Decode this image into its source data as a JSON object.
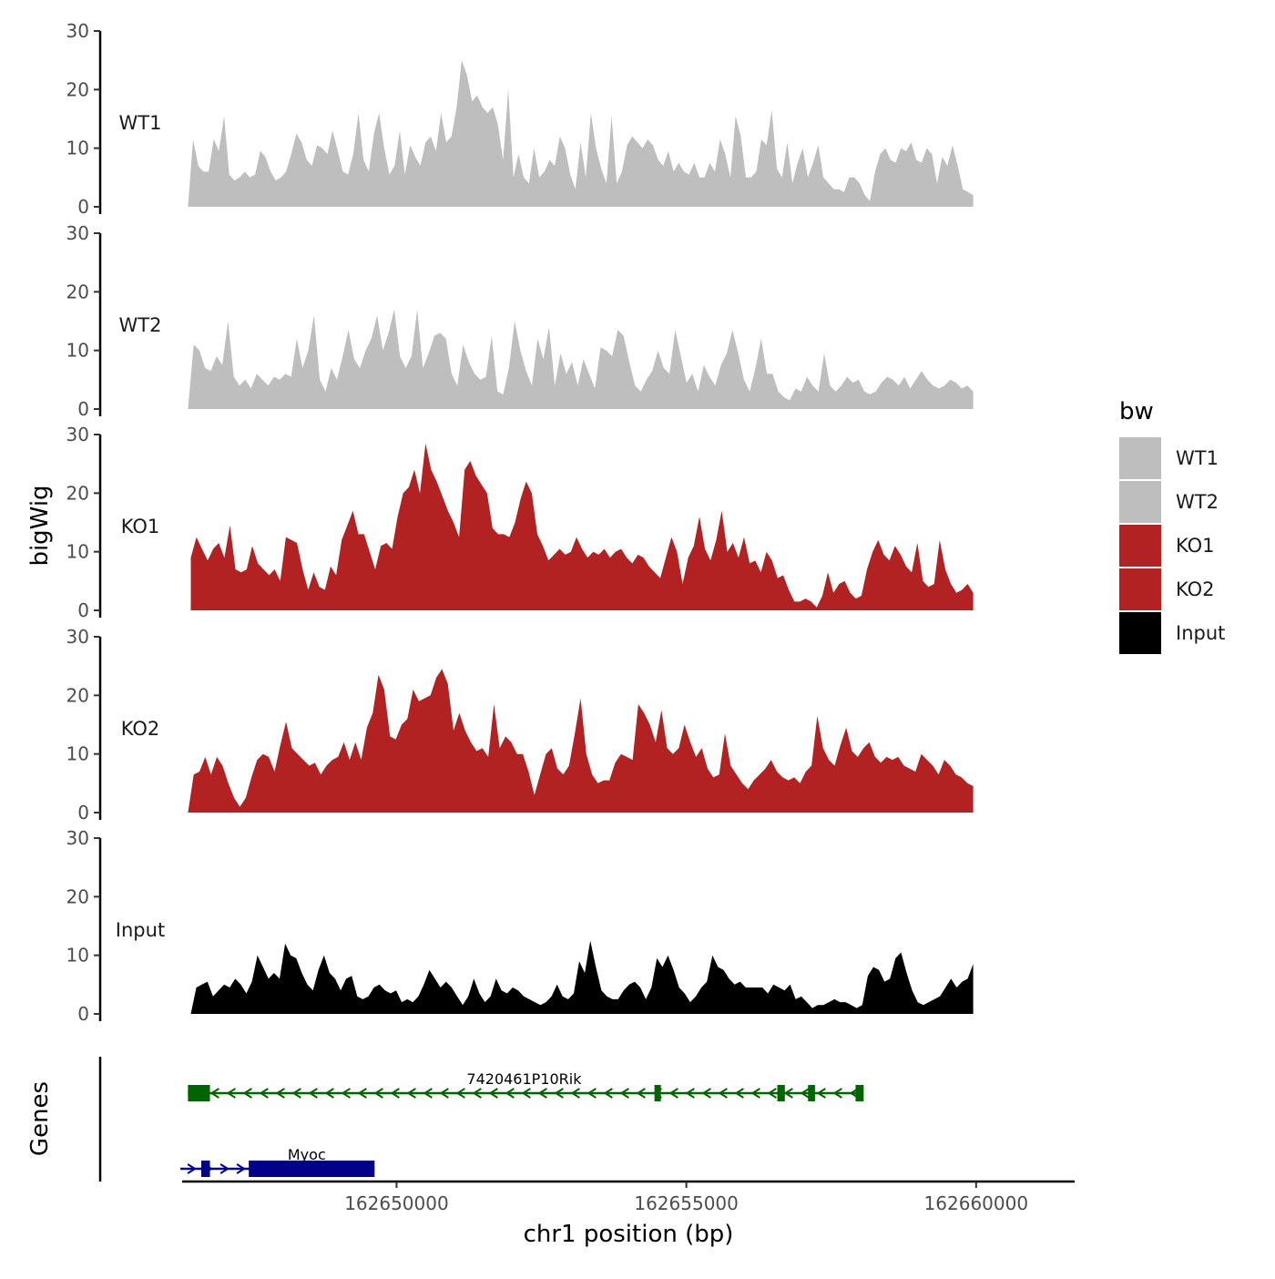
{
  "chart_data": {
    "type": "area",
    "title": "",
    "ylabel": "bigWig",
    "xlabel": "chr1 position (bp)",
    "ylim": [
      0,
      30
    ],
    "yticks": [
      0,
      10,
      20,
      30
    ],
    "xlim": [
      162646300,
      162661700
    ],
    "xticks": [
      162650000,
      162655000,
      162660000
    ],
    "xtick_labels": [
      "162650000",
      "162655000",
      "162660000"
    ],
    "legend": {
      "title": "bw",
      "position": "right",
      "entries": [
        {
          "label": "WT1",
          "color": "#bebebe"
        },
        {
          "label": "WT2",
          "color": "#bebebe"
        },
        {
          "label": "KO1",
          "color": "#b22222"
        },
        {
          "label": "KO2",
          "color": "#b22222"
        },
        {
          "label": "Input",
          "color": "#000000"
        }
      ]
    },
    "tracks": [
      {
        "name": "WT1",
        "color": "#bebebe",
        "x_start": 162646400,
        "x_end": 162659950,
        "values": [
          0,
          11.5,
          7,
          6,
          6,
          11.5,
          9.5,
          15.5,
          5.5,
          4.5,
          5,
          6,
          5,
          5.5,
          9.5,
          8.5,
          6,
          4.5,
          5,
          6,
          9,
          12.5,
          11,
          8,
          7,
          10.5,
          10,
          9,
          13,
          9.5,
          6,
          5.5,
          9,
          16,
          8,
          6,
          12.5,
          16,
          10,
          5.5,
          7,
          13,
          5.5,
          10.5,
          8.5,
          7,
          11,
          12,
          9.5,
          16,
          11,
          12,
          17,
          25,
          22.5,
          18,
          19,
          17,
          16,
          17,
          14,
          8,
          20,
          5,
          9,
          5,
          4,
          10,
          5,
          6,
          8,
          7,
          12,
          10,
          5.5,
          3,
          11,
          5,
          16,
          10,
          6.5,
          4,
          15.5,
          4,
          6,
          10.5,
          12,
          11,
          10,
          11.5,
          10.5,
          8,
          7,
          9.5,
          6,
          7.5,
          6,
          5.5,
          7.5,
          5,
          5,
          7.5,
          6,
          11.5,
          9,
          5,
          15.5,
          12,
          5,
          5,
          6,
          11.5,
          10.5,
          16.5,
          6.5,
          5,
          11,
          4,
          7.5,
          10,
          5,
          7.5,
          10.5,
          5,
          4,
          3,
          3,
          2.5,
          5,
          5,
          4,
          2,
          1,
          6,
          9,
          10,
          8,
          7.5,
          10,
          9.5,
          11,
          8,
          7.5,
          10,
          9,
          4,
          8.5,
          7,
          10.5,
          7,
          3,
          2.5,
          2
        ]
      },
      {
        "name": "WT2",
        "color": "#bebebe",
        "x_start": 162646400,
        "x_end": 162659950,
        "values": [
          0,
          11,
          10,
          7,
          6.5,
          9,
          7.5,
          15,
          5.5,
          4,
          5,
          3.5,
          6,
          5,
          4,
          5.5,
          5,
          6,
          5.5,
          12,
          7,
          10,
          16,
          5,
          3,
          7,
          5,
          9,
          13.5,
          8.5,
          7,
          10,
          12,
          16,
          10,
          13,
          17,
          9,
          7,
          9,
          17,
          7,
          9.5,
          12.5,
          13,
          12,
          6,
          4,
          11,
          8,
          6,
          5,
          5.5,
          12.5,
          3,
          2.5,
          7,
          15,
          10,
          6.5,
          4,
          12,
          8.5,
          14,
          4,
          9.5,
          6,
          8,
          4,
          8.5,
          6,
          3.5,
          10.5,
          10,
          9,
          13.5,
          12.5,
          8,
          4,
          3,
          5,
          6.5,
          10,
          7,
          6,
          13.5,
          9,
          4.5,
          6,
          3,
          7.5,
          5.5,
          4,
          7.5,
          9.5,
          13.5,
          9.5,
          5,
          3,
          7,
          12,
          6,
          6,
          3,
          2,
          1.5,
          3.5,
          3,
          5.5,
          4,
          3,
          9.5,
          4,
          3,
          4,
          5.5,
          4.5,
          5,
          3,
          2.5,
          3,
          4.5,
          5.5,
          5,
          4,
          5.5,
          3.5,
          5,
          6.5,
          5,
          4,
          3.5,
          4,
          5,
          4.5,
          3.5,
          4,
          3
        ]
      },
      {
        "name": "KO1",
        "color": "#b22222",
        "x_start": 162646450,
        "x_end": 162659950,
        "values": [
          9,
          12.5,
          10.5,
          8.5,
          10.5,
          11.5,
          9,
          14.5,
          7,
          6.5,
          7,
          11,
          8,
          7,
          6,
          7,
          5,
          12.5,
          12,
          11.5,
          7,
          3.5,
          6.5,
          4,
          3.5,
          7.5,
          6,
          12,
          14.5,
          17,
          13,
          13,
          10,
          7,
          11,
          11.5,
          10.5,
          16,
          20,
          21,
          24,
          20,
          28.5,
          24,
          22,
          19.5,
          17,
          15,
          12.5,
          24,
          25.5,
          23,
          21.5,
          20,
          14,
          13,
          13,
          12.5,
          15,
          19,
          22,
          20,
          13,
          11,
          8.5,
          9.5,
          10.5,
          9.5,
          10,
          12.5,
          10.5,
          9,
          10,
          9.5,
          10.5,
          9,
          10,
          10.5,
          9,
          8,
          9.5,
          9,
          7.5,
          6.5,
          5.5,
          9,
          12.5,
          10,
          4.5,
          9,
          11,
          16,
          10.5,
          8.5,
          12,
          17,
          10,
          11.5,
          9,
          12.5,
          8,
          8.5,
          6.5,
          10,
          8.5,
          5.5,
          6,
          3.5,
          1.5,
          1.5,
          2,
          1.5,
          0.5,
          2.5,
          6.5,
          3,
          4.5,
          5,
          3,
          2,
          2.5,
          7,
          10,
          12,
          9.5,
          8.5,
          11,
          9.5,
          7.5,
          6.5,
          11.5,
          5,
          4,
          4.5,
          12,
          7,
          4.5,
          3,
          3.5,
          4.5,
          3
        ]
      },
      {
        "name": "KO2",
        "color": "#b22222",
        "x_start": 162646400,
        "x_end": 162659950,
        "values": [
          0,
          6.5,
          7,
          9.5,
          6.5,
          9.5,
          8,
          5,
          2.5,
          1,
          2.5,
          6,
          9,
          10,
          9.5,
          7,
          11.5,
          15.5,
          11,
          10,
          9,
          8,
          8.5,
          6.5,
          8,
          9,
          9.5,
          12,
          9,
          12,
          9,
          14.5,
          17,
          23.5,
          21,
          13,
          12.5,
          15,
          16,
          21,
          19,
          19.5,
          20,
          23,
          24.5,
          22,
          14,
          17,
          14,
          12,
          10.5,
          11,
          9.5,
          18.5,
          11,
          13,
          12,
          10,
          10,
          7,
          3,
          6.5,
          10,
          11,
          7.5,
          6.5,
          8,
          13.5,
          19.5,
          10,
          6.5,
          5,
          5.5,
          5.5,
          8.5,
          10,
          9.5,
          9,
          18.5,
          17,
          15,
          12,
          17.5,
          11,
          10,
          11,
          15,
          12,
          9.5,
          11,
          7.5,
          6,
          6.5,
          13.5,
          8,
          6.5,
          5,
          4,
          5.5,
          6.5,
          7.5,
          9,
          7,
          6,
          5.5,
          6,
          5,
          7,
          8,
          16.5,
          11,
          9,
          8,
          11.5,
          14.5,
          10.5,
          9.5,
          11,
          12,
          9.5,
          8.5,
          9.5,
          9,
          9.5,
          8,
          7.5,
          7,
          10,
          9,
          8,
          6.5,
          9,
          8,
          6.5,
          6,
          5,
          4.5
        ]
      },
      {
        "name": "Input",
        "color": "#000000",
        "x_start": 162646450,
        "x_end": 162659950,
        "values": [
          0,
          4.5,
          5,
          5.5,
          3,
          4,
          5,
          4.5,
          6,
          5,
          3.5,
          5.5,
          10,
          8,
          6,
          7,
          6,
          12,
          10,
          9.5,
          7,
          5,
          4,
          7.5,
          10,
          7,
          6,
          4,
          6,
          6.5,
          3,
          2.5,
          3,
          4.5,
          5,
          4,
          3.5,
          4,
          2,
          2.5,
          2,
          3,
          5,
          7.5,
          6,
          4.5,
          5.5,
          4.5,
          3,
          1.5,
          3,
          6,
          3.5,
          2,
          3,
          6,
          4,
          3.5,
          4.5,
          4,
          3,
          2.5,
          2,
          1.5,
          2,
          3,
          5,
          3,
          2.5,
          3.5,
          9,
          7,
          12.5,
          8,
          4,
          3,
          2.5,
          2.5,
          4,
          5,
          5.5,
          4.5,
          2.5,
          4.5,
          9.5,
          8,
          10,
          7.5,
          4.5,
          3.5,
          2,
          3,
          4.5,
          5.5,
          10,
          8,
          7.5,
          6,
          5,
          5.5,
          4.5,
          4.5,
          4.5,
          4.5,
          3.5,
          5,
          4.5,
          4,
          5,
          2.5,
          3,
          2,
          1,
          1.5,
          1.5,
          2,
          2.5,
          2,
          2,
          1.5,
          1,
          1.5,
          6.5,
          8,
          7.5,
          5.5,
          6,
          9.5,
          10.5,
          7,
          4,
          2,
          1.5,
          2,
          2.5,
          3,
          4.5,
          6,
          4.5,
          5.5,
          6,
          8.5
        ]
      }
    ],
    "genes_track": {
      "label": "Genes",
      "genes": [
        {
          "name": "7420461P10Rik",
          "strand": "-",
          "color": "#006400",
          "start": 162646400,
          "end": 162658000,
          "exons": [
            [
              162646400,
              162646780
            ],
            [
              162654450,
              162654560
            ],
            [
              162656570,
              162656700
            ],
            [
              162657100,
              162657220
            ],
            [
              162657920,
              162658060
            ]
          ]
        },
        {
          "name": "Myoc",
          "strand": "+",
          "color": "#00008b",
          "start": 162646270,
          "end": 162649620,
          "exons": [
            [
              162646630,
              162646780
            ],
            [
              162647450,
              162649620
            ]
          ]
        }
      ]
    }
  }
}
